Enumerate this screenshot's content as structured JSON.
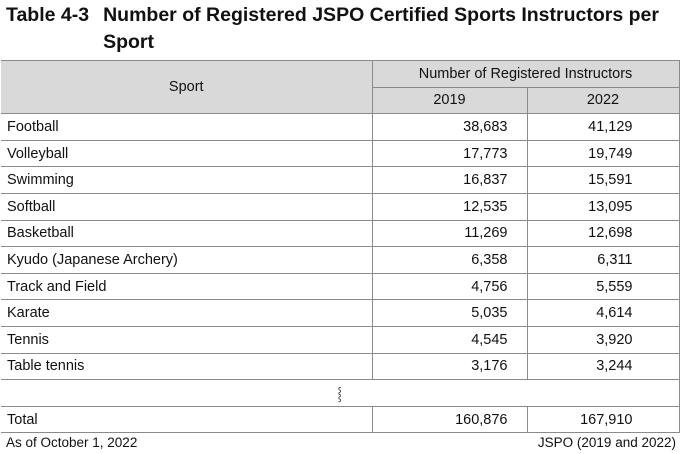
{
  "title": {
    "number": "Table 4-3",
    "text": "Number of Registered JSPO Certified Sports Instructors per Sport"
  },
  "table": {
    "header_sport": "Sport",
    "header_group": "Number of Registered Instructors",
    "years": [
      "2019",
      "2022"
    ],
    "rows": [
      {
        "sport": "Football",
        "y2019": "38,683",
        "y2022": "41,129"
      },
      {
        "sport": "Volleyball",
        "y2019": "17,773",
        "y2022": "19,749"
      },
      {
        "sport": "Swimming",
        "y2019": "16,837",
        "y2022": "15,591"
      },
      {
        "sport": "Softball",
        "y2019": "12,535",
        "y2022": "13,095"
      },
      {
        "sport": "Basketball",
        "y2019": "11,269",
        "y2022": "12,698"
      },
      {
        "sport": "Kyudo (Japanese Archery)",
        "y2019": "6,358",
        "y2022": "6,311"
      },
      {
        "sport": "Track and Field",
        "y2019": "4,756",
        "y2022": "5,559"
      },
      {
        "sport": "Karate",
        "y2019": "5,035",
        "y2022": "4,614"
      },
      {
        "sport": "Tennis",
        "y2019": "4,545",
        "y2022": "3,920"
      },
      {
        "sport": "Table tennis",
        "y2019": "3,176",
        "y2022": "3,244"
      }
    ],
    "omission_mark": "⸾",
    "total": {
      "label": "Total",
      "y2019": "160,876",
      "y2022": "167,910"
    }
  },
  "footer": {
    "left": "As of October 1, 2022",
    "right": "JSPO (2019 and 2022)"
  }
}
